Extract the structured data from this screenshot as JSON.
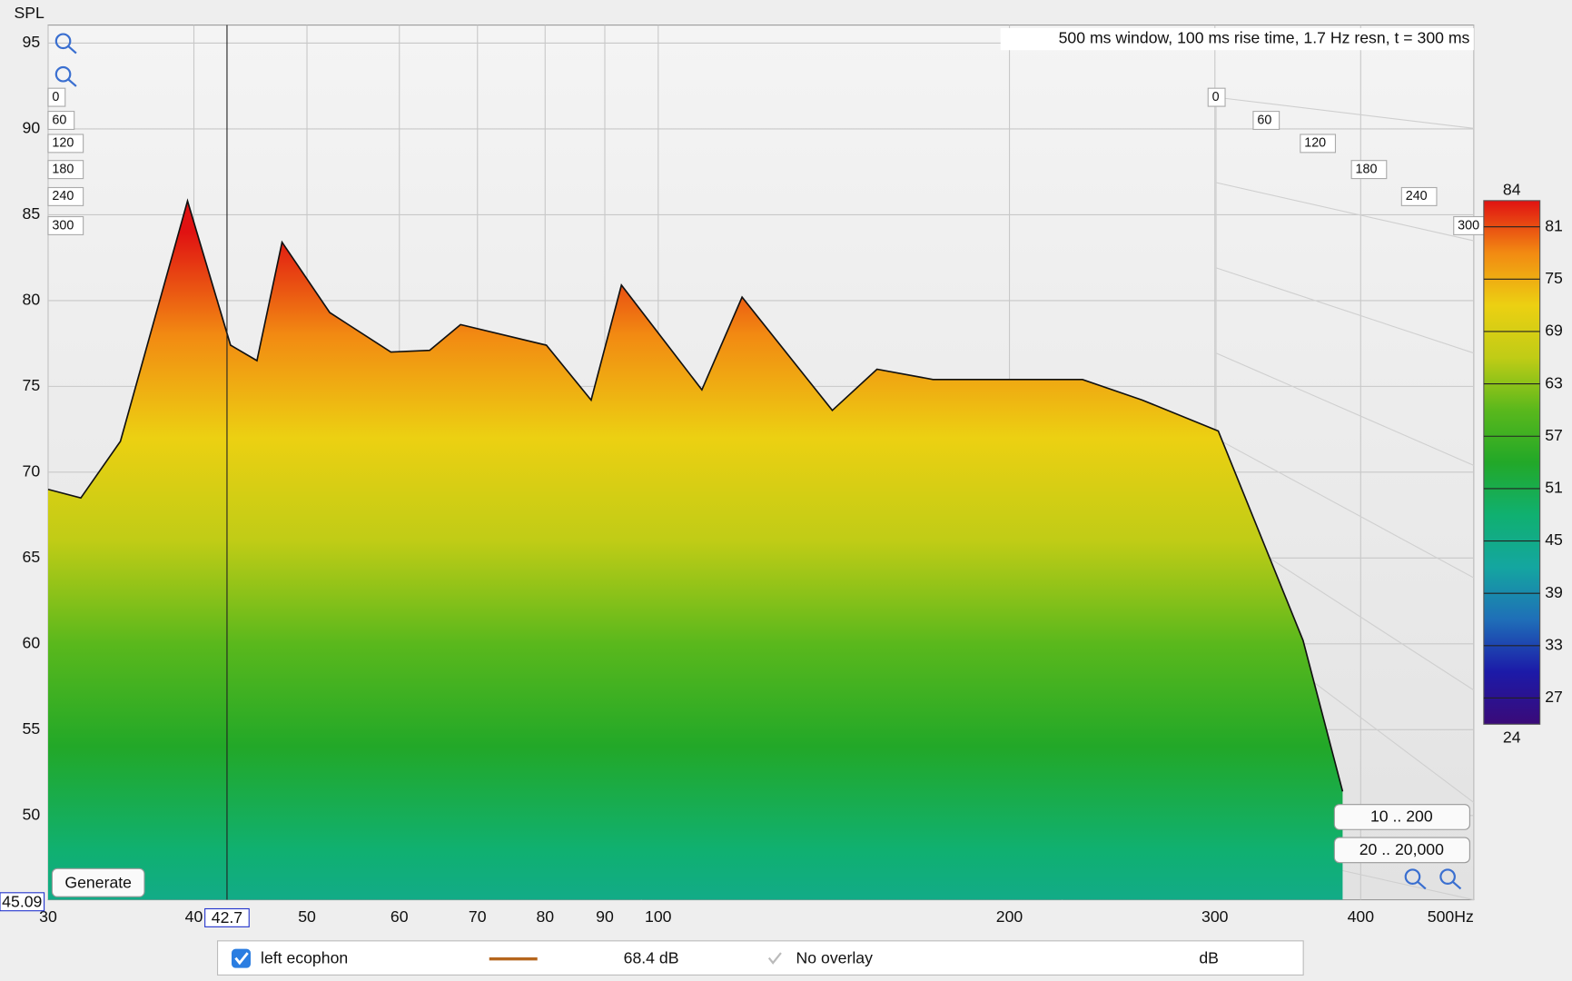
{
  "chart_data": {
    "type": "waterfall",
    "title": "500 ms window, 100 ms rise time,  1.7 Hz resn, t = 300 ms",
    "y_label": "SPL",
    "log_x": true,
    "grid": true,
    "xlim": [
      30,
      500
    ],
    "xticks": [
      30,
      40,
      50,
      60,
      70,
      80,
      90,
      100,
      200,
      300,
      400,
      {
        "value": 500,
        "label": "500Hz"
      }
    ],
    "ylim": [
      45.09,
      96.05
    ],
    "yticks": [
      50,
      55,
      60,
      65,
      70,
      75,
      80,
      85,
      90,
      95
    ],
    "cursor_x": 42.7,
    "time_ticks": [
      0,
      60,
      120,
      180,
      240,
      300
    ],
    "colorbar": {
      "clim": [
        24,
        84
      ],
      "ticks": [
        27,
        33,
        39,
        45,
        51,
        57,
        63,
        69,
        75,
        81
      ],
      "colormap": [
        "#3a0a78",
        "#1c1aa8",
        "#1f6fb8",
        "#14a6a0",
        "#10b070",
        "#22a828",
        "#5ab81c",
        "#c0cc16",
        "#ecd012",
        "#f28a12",
        "#e01212"
      ]
    },
    "x": [
      30,
      32,
      34.6,
      39.5,
      43,
      45.3,
      47.6,
      52.3,
      59,
      63.7,
      67.7,
      80.2,
      87.6,
      93,
      109,
      118,
      141,
      154,
      172,
      197,
      231,
      260,
      302,
      357,
      386
    ],
    "series": [
      {
        "name": "left ecophon",
        "color": "#b5651d",
        "values": [
          69,
          68.5,
          71.8,
          85.8,
          77.4,
          76.5,
          83.4,
          79.3,
          77,
          77.1,
          78.6,
          77.4,
          74.2,
          80.9,
          74.8,
          80.2,
          73.6,
          76,
          75.4,
          75.4,
          75.4,
          74.2,
          72.4,
          60.2,
          51.4
        ]
      }
    ]
  },
  "ui": {
    "buttons": [
      "Generate",
      "10 .. 200",
      "20 .. 20,000"
    ],
    "legend": {
      "readout": "68.4 dB",
      "overlay": "No overlay",
      "unit": "dB"
    }
  }
}
